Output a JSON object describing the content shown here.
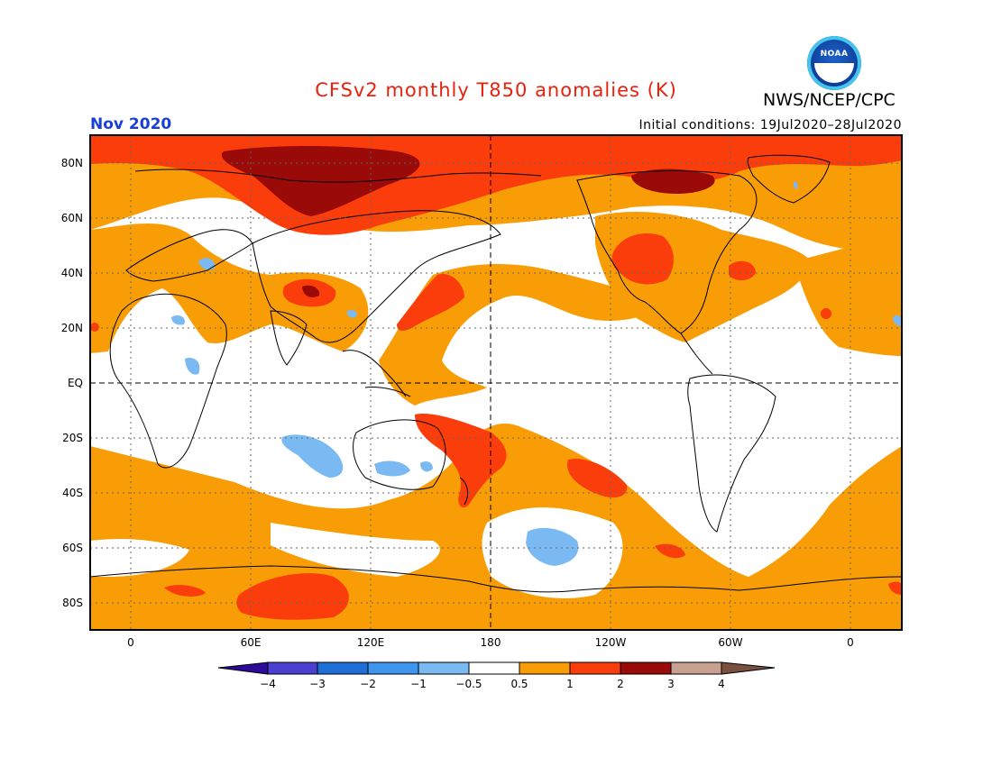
{
  "header": {
    "title": "CFSv2 monthly T850 anomalies (K)",
    "org": "NWS/NCEP/CPC",
    "period": "Nov 2020",
    "initial_conditions": "Initial conditions: 19Jul2020–28Jul2020",
    "logo_text": "NOAA"
  },
  "map": {
    "lat_labels": [
      "80N",
      "60N",
      "40N",
      "20N",
      "EQ",
      "20S",
      "40S",
      "60S",
      "80S"
    ],
    "lon_labels": [
      "0",
      "60E",
      "120E",
      "180",
      "120W",
      "60W",
      "0"
    ],
    "grid": true,
    "dateline_dashed": true,
    "equator_dashed": true
  },
  "colorbar": {
    "labels": [
      "−4",
      "−3",
      "−2",
      "−1",
      "−0.5",
      "0.5",
      "1",
      "2",
      "3",
      "4"
    ],
    "colors": [
      "#2c0a9a",
      "#4a3fd0",
      "#1f6fd9",
      "#3f96ef",
      "#7ab9f2",
      "#ffffff",
      "#f99d06",
      "#fb3d0c",
      "#9a0a08",
      "#c8a08f",
      "#7a5040"
    ]
  },
  "chart_data": {
    "type": "heatmap",
    "title": "CFSv2 monthly T850 anomalies (K)",
    "variable": "T850 anomaly",
    "units": "K",
    "valid_month": "Nov 2020",
    "initial_conditions": "19Jul2020–28Jul2020",
    "levels": [
      -4,
      -3,
      -2,
      -1,
      -0.5,
      0.5,
      1,
      2,
      3,
      4
    ],
    "regions": [
      {
        "name": "Arctic / Greenland Sea",
        "range": "3 to 4"
      },
      {
        "name": "Northern Eurasia high latitudes",
        "range": "1 to 2"
      },
      {
        "name": "Tibetan Plateau",
        "range": "2 to 3"
      },
      {
        "name": "Western North America",
        "range": "1 to 2"
      },
      {
        "name": "Eastern United States",
        "range": "1 to 2"
      },
      {
        "name": "Tropical West Pacific",
        "range": "1 to 2"
      },
      {
        "name": "New Zealand / SW Pacific",
        "range": "1 to 2"
      },
      {
        "name": "South Pacific near 140W 30S",
        "range": "1 to 2"
      },
      {
        "name": "East Antarctica",
        "range": "1 to 2"
      },
      {
        "name": "Southern Ocean belt",
        "range": "0.5 to 1"
      },
      {
        "name": "Australia west / south",
        "range": "-1 to -0.5"
      },
      {
        "name": "South Pacific near 120W 55S",
        "range": "-1 to -0.5"
      },
      {
        "name": "Tropics / Indian Ocean",
        "range": "-0.5 to 0.5"
      }
    ]
  }
}
